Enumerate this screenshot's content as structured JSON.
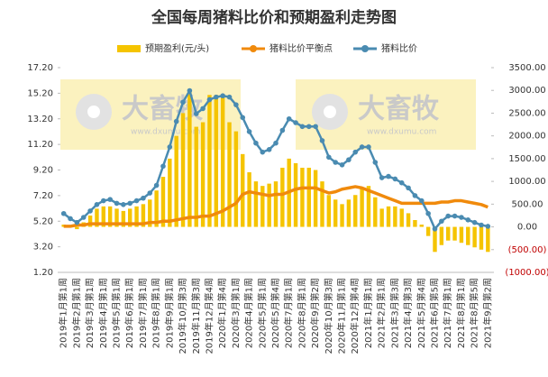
{
  "chart_data": {
    "type": "combo",
    "title": "全国每周猪料比价和预期盈利走势图",
    "watermark": {
      "logo_text": "大畜牧",
      "url": "www.dxumu.com"
    },
    "categories": [
      "2019年1月第1周",
      null,
      "2019年2月第1周",
      null,
      "2019年3月第1周",
      null,
      "2019年4月第1周",
      null,
      "2019年5月第1周",
      null,
      "2019年6月第1周",
      null,
      "2019年7月第1周",
      null,
      "2019年8月第1周",
      null,
      "2019年9月第1周",
      null,
      "2019年10月第3周",
      null,
      "2019年11月第3周",
      null,
      "2019年12月第4周",
      null,
      "2020年1月第4周",
      null,
      "2020年3月第1周",
      null,
      "2020年4月第1周",
      null,
      "2020年5月第1周",
      null,
      "2020年5月第4周",
      null,
      "2020年7月第1周",
      null,
      "2020年8月第1周",
      null,
      "2020年9月第2周",
      null,
      "2020年10月第3周",
      null,
      "2020年11月第1周",
      null,
      "2020年12月第4周",
      null,
      "2021年1月第1周",
      null,
      "2021年2月第1周",
      null,
      "2021年3月第3周",
      null,
      "2021年4月第3周",
      null,
      "2021年5月第4周",
      null,
      "2021年6月第5周",
      null,
      "2021年7月第1周",
      null,
      "2021年8月第1周",
      null,
      "2021年8月第5周",
      null,
      "2021年9月第2周"
    ],
    "series": [
      {
        "name": "预期盈利(元/头)",
        "type": "bar",
        "axis": "y2",
        "color": "#f5c400",
        "values": [
          50,
          0,
          -50,
          100,
          250,
          400,
          450,
          450,
          400,
          350,
          400,
          450,
          500,
          600,
          800,
          1100,
          1500,
          2000,
          2500,
          3000,
          2200,
          2300,
          2900,
          2900,
          2900,
          2300,
          2100,
          1600,
          1200,
          1000,
          900,
          950,
          1000,
          1300,
          1500,
          1400,
          1300,
          1300,
          1250,
          1000,
          700,
          600,
          500,
          600,
          700,
          850,
          900,
          650,
          400,
          450,
          450,
          400,
          300,
          150,
          50,
          -200,
          -550,
          -400,
          -300,
          -300,
          -350,
          -400,
          -450,
          -500,
          -550
        ]
      },
      {
        "name": "猪料比价平衡点",
        "type": "line",
        "color": "#f08a0c",
        "values": [
          4.8,
          4.8,
          4.9,
          4.9,
          5.0,
          5.0,
          5.0,
          5.0,
          5.0,
          5.0,
          5.0,
          5.0,
          5.0,
          5.1,
          5.1,
          5.2,
          5.2,
          5.3,
          5.4,
          5.5,
          5.5,
          5.6,
          5.6,
          5.8,
          6.0,
          6.3,
          6.6,
          7.3,
          7.5,
          7.4,
          7.3,
          7.2,
          7.3,
          7.3,
          7.5,
          7.7,
          7.8,
          7.8,
          7.8,
          7.6,
          7.4,
          7.5,
          7.7,
          7.8,
          7.9,
          7.8,
          7.6,
          7.4,
          7.2,
          7.0,
          6.8,
          6.6,
          6.6,
          6.6,
          6.6,
          6.6,
          6.6,
          6.7,
          6.7,
          6.8,
          6.8,
          6.7,
          6.6,
          6.5,
          6.3
        ]
      },
      {
        "name": "猪料比价",
        "type": "line",
        "color": "#4a8bb1",
        "values": [
          5.8,
          5.4,
          5.1,
          5.5,
          6.0,
          6.5,
          6.8,
          6.9,
          6.6,
          6.5,
          6.6,
          6.8,
          7.0,
          7.4,
          8.0,
          9.5,
          11.0,
          13.0,
          14.5,
          15.4,
          13.6,
          14.0,
          14.7,
          14.9,
          15.0,
          14.9,
          14.3,
          13.3,
          12.2,
          11.3,
          10.6,
          10.8,
          11.3,
          12.3,
          13.2,
          12.9,
          12.6,
          12.6,
          12.6,
          11.5,
          10.2,
          9.8,
          9.6,
          10.0,
          10.6,
          11.0,
          11.0,
          9.8,
          8.6,
          8.7,
          8.5,
          8.2,
          7.8,
          7.2,
          6.8,
          5.8,
          4.6,
          5.2,
          5.6,
          5.6,
          5.5,
          5.3,
          5.1,
          4.9,
          4.8
        ]
      }
    ],
    "ylim": [
      1.2,
      17.2
    ],
    "yticks": [
      {
        "value": 1.2,
        "label": "1.20"
      },
      {
        "value": 3.2,
        "label": "3.20"
      },
      {
        "value": 5.2,
        "label": "5.20"
      },
      {
        "value": 7.2,
        "label": "7.20"
      },
      {
        "value": 9.2,
        "label": "9.20"
      },
      {
        "value": 11.2,
        "label": "11.20"
      },
      {
        "value": 13.2,
        "label": "13.20"
      },
      {
        "value": 15.2,
        "label": "15.20"
      },
      {
        "value": 17.2,
        "label": "17.20"
      }
    ],
    "y2lim": [
      -1000,
      3500
    ],
    "y2ticks": [
      {
        "value": -1000,
        "label": "(1000.00)"
      },
      {
        "value": -500,
        "label": "(500.00)"
      },
      {
        "value": 0,
        "label": "0.00"
      },
      {
        "value": 500,
        "label": "500.00"
      },
      {
        "value": 1000,
        "label": "1000.00"
      },
      {
        "value": 1500,
        "label": "1500.00"
      },
      {
        "value": 2000,
        "label": "2000.00"
      },
      {
        "value": 2500,
        "label": "2500.00"
      },
      {
        "value": 3000,
        "label": "3000.00"
      },
      {
        "value": 3500,
        "label": "3500.00"
      }
    ],
    "legend": "top"
  }
}
